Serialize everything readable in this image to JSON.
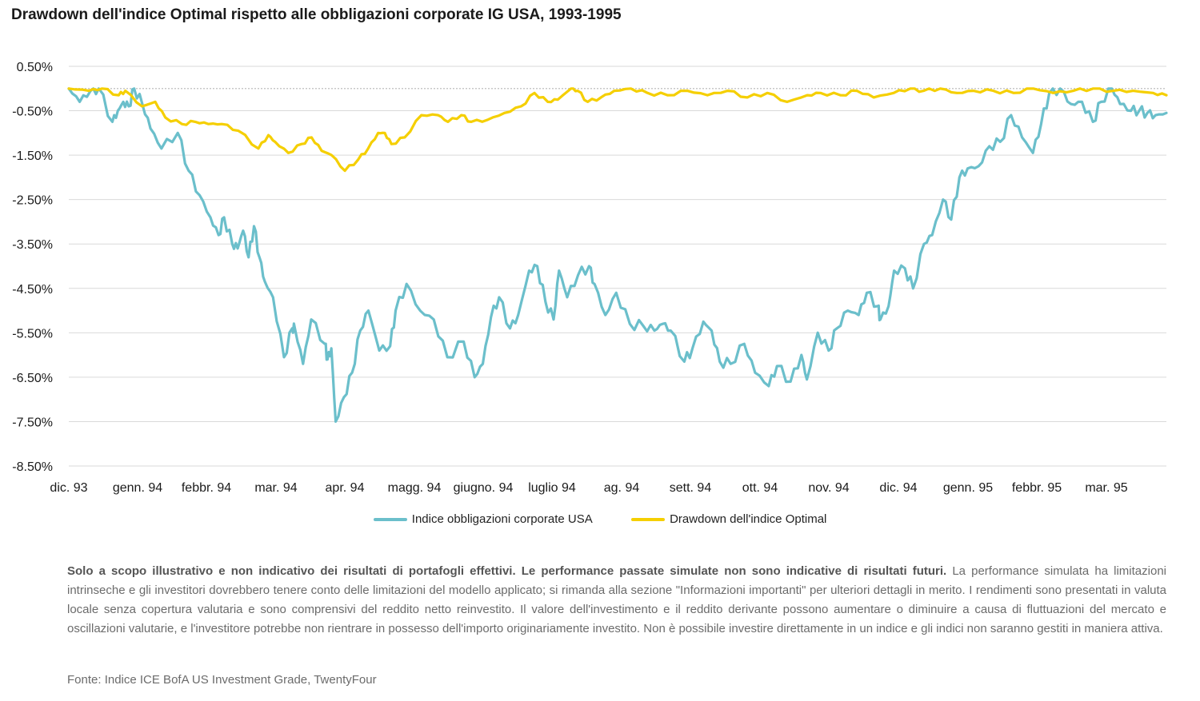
{
  "title": "Drawdown dell'indice Optimal rispetto alle obbligazioni corporate IG USA, 1993-1995",
  "chart_data": {
    "type": "line",
    "title": "Drawdown dell'indice Optimal rispetto alle obbligazioni corporate IG USA, 1993-1995",
    "xlabel": "",
    "ylabel": "",
    "ylim": [
      -8.5,
      0.5
    ],
    "xlim": [
      0,
      16.5
    ],
    "grid": "horizontal",
    "legend_position": "bottom",
    "y_ticks": [
      "0.50%",
      "-0.50%",
      "-1.50%",
      "-2.50%",
      "-3.50%",
      "-4.50%",
      "-5.50%",
      "-6.50%",
      "-7.50%",
      "-8.50%"
    ],
    "y_tick_values": [
      0.5,
      -0.5,
      -1.5,
      -2.5,
      -3.5,
      -4.5,
      -5.5,
      -6.5,
      -7.5,
      -8.5
    ],
    "x_ticks": [
      "dic. 93",
      "genn. 94",
      "febbr. 94",
      "mar. 94",
      "apr. 94",
      "magg. 94",
      "giugno. 94",
      "luglio 94",
      "ag. 94",
      "sett. 94",
      "ott. 94",
      "nov. 94",
      "dic. 94",
      "genn. 95",
      "febbr. 95",
      "mar. 95"
    ],
    "x_tick_positions": [
      0,
      1.03,
      2.07,
      3.1,
      4.14,
      5.17,
      6.21,
      7.24,
      8.28,
      9.31,
      10.34,
      11.38,
      12.41,
      13.45,
      14.48,
      15.52
    ],
    "series": [
      {
        "name": "Indice obbligazioni corporate USA",
        "color": "#6bbfcb",
        "x": [
          0,
          0.2,
          0.4,
          0.55,
          0.8,
          0.9,
          1.0,
          1.1,
          1.2,
          1.35,
          1.5,
          1.7,
          2.0,
          2.2,
          2.4,
          2.6,
          2.75,
          2.85,
          3.0,
          3.1,
          3.2,
          3.3,
          3.4,
          3.5,
          3.6,
          3.75,
          3.95,
          4.1,
          4.15,
          4.3,
          4.45,
          4.7,
          4.75,
          4.82,
          4.9,
          5.05,
          5.2,
          5.35,
          5.5,
          5.7,
          5.9,
          6.0,
          6.2,
          6.45,
          6.7,
          6.95,
          7.25,
          7.45,
          7.6,
          7.75,
          7.9,
          8.1,
          8.25,
          8.45,
          8.6,
          8.75,
          8.9,
          9.0,
          9.15,
          9.35,
          9.55,
          9.65,
          9.85,
          10.05,
          10.3,
          10.55,
          10.75,
          10.9,
          11.05,
          11.3,
          11.45,
          11.65,
          11.8,
          11.95,
          12.15,
          12.4,
          12.6,
          12.85,
          13.0,
          13.25,
          13.45,
          13.55,
          13.75,
          13.95,
          14.1,
          14.3,
          14.5,
          14.65,
          14.85,
          14.9,
          15.05,
          15.15,
          15.35,
          15.5,
          15.7,
          15.85,
          16.05,
          16.2,
          16.35,
          16.5
        ],
        "values": [
          0.0,
          -0.3,
          -0.05,
          0.0,
          -0.75,
          -0.5,
          -0.3,
          -0.4,
          0.0,
          -0.35,
          -0.9,
          -1.35,
          -1.0,
          -1.85,
          -2.4,
          -2.9,
          -3.3,
          -2.9,
          -3.5,
          -3.6,
          -3.2,
          -3.8,
          -3.1,
          -3.8,
          -4.35,
          -4.7,
          -6.05,
          -5.4,
          -5.4,
          -6.2,
          -5.2,
          -5.75,
          -6.1,
          -5.85,
          -7.5,
          -6.95,
          -6.4,
          -5.45,
          -5.0,
          -5.9,
          -5.8,
          -5.0,
          -4.4,
          -5.0,
          -5.2,
          -6.05,
          -5.7,
          -6.5,
          -6.2,
          -5.15,
          -4.7,
          -5.4,
          -5.1,
          -4.1,
          -4.0,
          -4.8,
          -5.2,
          -4.1,
          -4.7,
          -4.2,
          -4.0,
          -4.4,
          -5.1,
          -4.6,
          -5.3,
          -5.35,
          -5.45,
          -5.3,
          -5.45,
          -6.15,
          -5.85,
          -5.25,
          -5.45,
          -6.15,
          -6.2,
          -5.75,
          -6.4,
          -6.7,
          -6.25,
          -6.6,
          -6.0,
          -6.55,
          -5.5,
          -5.9,
          -5.4,
          -5.0,
          -5.1,
          -4.6,
          -4.9,
          -5.2,
          -4.9,
          -4.1,
          -4.05,
          -4.5,
          -3.5,
          -3.3,
          -2.5,
          -2.95,
          -2.0,
          -1.8
        ],
        "x_tail": [
          16.5,
          16.7,
          16.9,
          17.1,
          17.3,
          17.5,
          17.7,
          17.85,
          18.0,
          18.2,
          18.4,
          18.6,
          18.8,
          18.95,
          19.15,
          19.3,
          19.5,
          19.65,
          19.8,
          19.95,
          20.15
        ],
        "values_tail": [
          -1.8,
          -1.75,
          -1.3,
          -1.2,
          -0.6,
          -1.1,
          -1.45,
          -0.8,
          -0.1,
          0.0,
          -0.35,
          -0.3,
          -0.75,
          -0.3,
          0.0,
          -0.35,
          -0.5,
          -0.5,
          -0.55,
          -0.6,
          -0.55
        ]
      },
      {
        "name": "Drawdown dell'indice Optimal",
        "color": "#f5cf00",
        "x": [
          0,
          0.3,
          0.5,
          0.75,
          0.85,
          1.1,
          1.3,
          1.45,
          1.7,
          1.9,
          2.1,
          2.3,
          2.55,
          2.85,
          3.0,
          3.1,
          3.3,
          3.5,
          3.65,
          3.8,
          3.95,
          4.15,
          4.35,
          4.5,
          4.65,
          4.75,
          4.85,
          5.05,
          5.3,
          5.55,
          5.7,
          5.9,
          6.05,
          6.3,
          6.55,
          6.8,
          7.0,
          7.2,
          7.35,
          7.55,
          7.65,
          7.8,
          8.0,
          8.2,
          8.45,
          8.7,
          9.0,
          9.3,
          9.6,
          9.9,
          10.2,
          10.5,
          10.8,
          11.1,
          11.3,
          11.6,
          11.85,
          12.1,
          12.4,
          12.65,
          12.85,
          13.1,
          13.35,
          13.6,
          13.9,
          14.2,
          14.5,
          14.8,
          15.1,
          15.4,
          15.7,
          16.0,
          16.3,
          16.5
        ],
        "values": [
          0.0,
          -0.05,
          0.0,
          -0.15,
          -0.05,
          -0.4,
          -0.3,
          -0.65,
          -0.8,
          -0.75,
          -0.8,
          -0.8,
          -0.95,
          -1.35,
          -1.05,
          -1.2,
          -1.45,
          -1.25,
          -1.1,
          -1.4,
          -1.5,
          -1.85,
          -1.6,
          -1.35,
          -1.0,
          -1.0,
          -1.25,
          -1.1,
          -0.6,
          -0.6,
          -0.75,
          -0.6,
          -0.75,
          -0.7,
          -0.55,
          -0.4,
          -0.1,
          -0.3,
          -0.25,
          0.0,
          -0.05,
          -0.3,
          -0.2,
          -0.05,
          0.0,
          -0.1,
          -0.15,
          -0.05,
          -0.15,
          -0.05,
          -0.2,
          -0.1,
          -0.3,
          -0.15,
          -0.1,
          -0.15,
          -0.05,
          -0.2,
          -0.1,
          0.0,
          -0.05,
          0.0,
          -0.1,
          -0.05,
          -0.05,
          -0.1,
          0.0,
          -0.1,
          -0.05,
          0.0,
          -0.05,
          -0.05,
          -0.1,
          -0.15
        ]
      }
    ]
  },
  "legend": {
    "series1": "Indice obbligazioni corporate USA",
    "series2": "Drawdown dell'indice Optimal"
  },
  "disclaimer": {
    "bold": "Solo a scopo illustrativo e non indicativo dei risultati di portafogli effettivi. Le performance passate simulate non sono indicative di risultati futuri.",
    "text": " La performance simulata ha limitazioni intrinseche e gli investitori dovrebbero tenere conto delle limitazioni del modello applicato; si rimanda alla sezione \"Informazioni importanti\" per ulteriori dettagli in merito. I rendimenti sono presentati in valuta locale senza copertura valutaria e sono comprensivi del reddito netto reinvestito. Il valore dell'investimento e il reddito derivante possono aumentare o diminuire a causa di fluttuazioni del mercato e oscillazioni valutarie, e l'investitore potrebbe non rientrare in possesso dell'importo originariamente investito. Non è possibile investire direttamente in un indice e gli indici non saranno gestiti in maniera attiva."
  },
  "source": "Fonte: Indice ICE BofA US Investment Grade, TwentyFour"
}
